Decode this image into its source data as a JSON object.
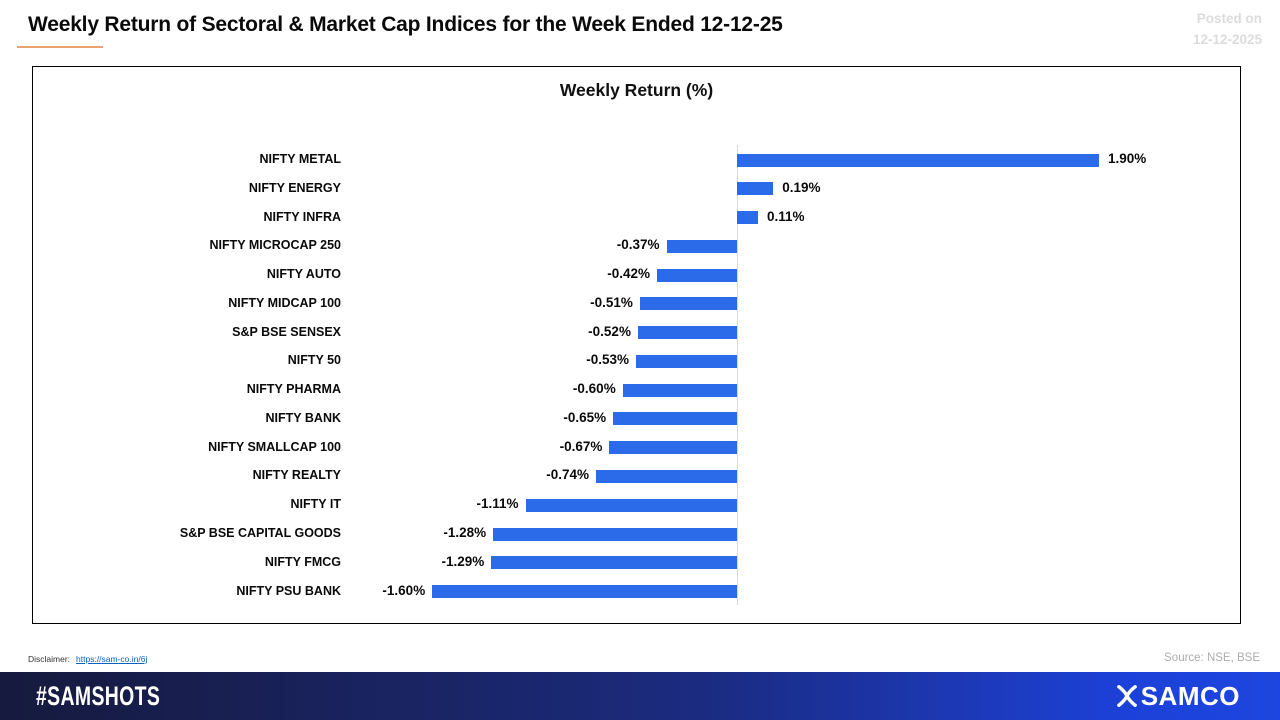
{
  "header": {
    "title": "Weekly Return of Sectoral & Market Cap Indices for the Week Ended 12-12-25",
    "posted_on_label": "Posted on",
    "posted_on_date": "12-12-2025"
  },
  "chart_data": {
    "type": "bar",
    "orientation": "horizontal",
    "title": "Weekly Return (%)",
    "categories": [
      "NIFTY METAL",
      "NIFTY ENERGY",
      "NIFTY INFRA",
      "NIFTY MICROCAP 250",
      "NIFTY AUTO",
      "NIFTY MIDCAP 100",
      "S&P BSE SENSEX",
      "NIFTY 50",
      "NIFTY PHARMA",
      "NIFTY BANK",
      "NIFTY SMALLCAP 100",
      "NIFTY REALTY",
      "NIFTY IT",
      "S&P BSE CAPITAL GOODS",
      "NIFTY FMCG",
      "NIFTY PSU BANK"
    ],
    "values": [
      1.9,
      0.19,
      0.11,
      -0.37,
      -0.42,
      -0.51,
      -0.52,
      -0.53,
      -0.6,
      -0.65,
      -0.67,
      -0.74,
      -1.11,
      -1.28,
      -1.29,
      -1.6
    ],
    "value_labels": [
      "1.90%",
      "0.19%",
      "0.11%",
      "-0.37%",
      "-0.42%",
      "-0.51%",
      "-0.52%",
      "-0.53%",
      "-0.60%",
      "-0.65%",
      "-0.67%",
      "-0.74%",
      "-1.11%",
      "-1.28%",
      "-1.29%",
      "-1.60%"
    ],
    "bar_color": "#2B6AE9",
    "axis_line_color": "#D9D9D9",
    "data_labels_shown": true,
    "value_axis_ticks_shown": false,
    "legend": "none"
  },
  "footer": {
    "disclaimer_label": "Disclaimer:",
    "disclaimer_link": "https://sam-co.in/6j",
    "source": "Source: NSE, BSE",
    "hashtag": "#SAMSHOTS",
    "brand": "SAMCO"
  },
  "colors": {
    "title_accent_underline": "#E9A26F",
    "posted_on_text": "#DCDCDC",
    "source_text": "#ADADAD",
    "footer_gradient": [
      "#161A3E",
      "#1B2B80",
      "#1D46E0"
    ],
    "link_blue": "#0563C1"
  }
}
